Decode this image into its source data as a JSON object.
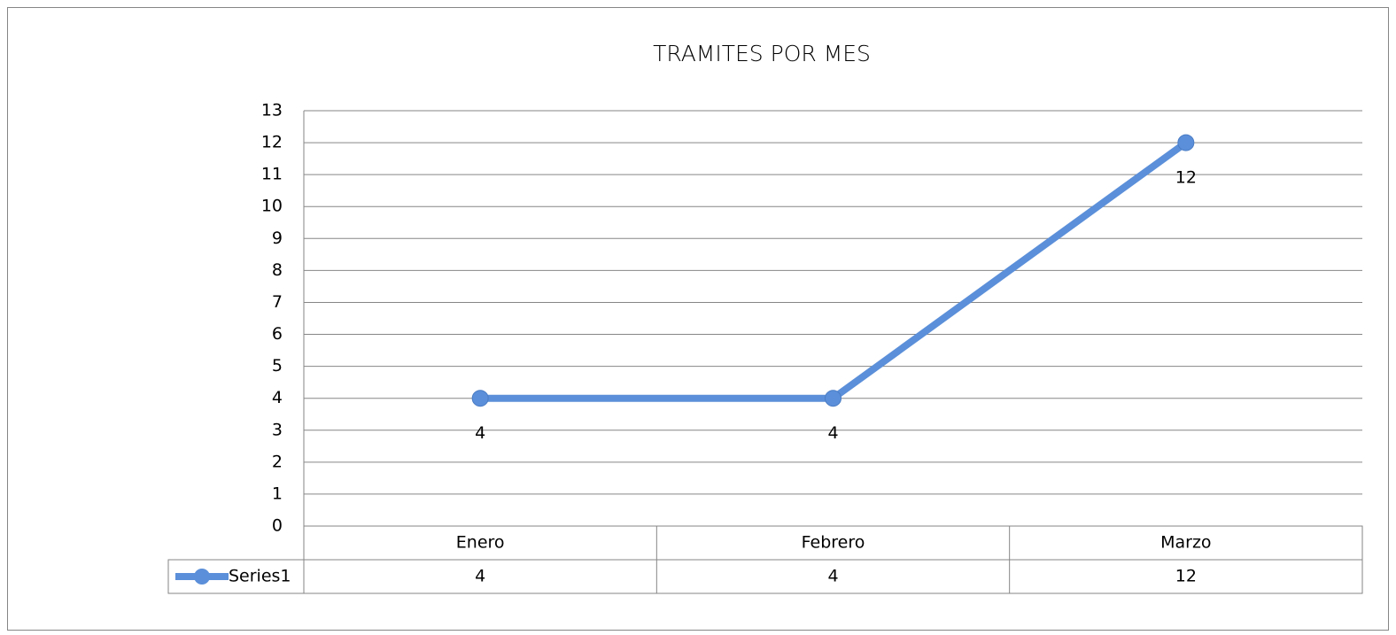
{
  "chart_data": {
    "type": "line",
    "title": "TRAMITES POR MES",
    "categories": [
      "Enero",
      "Febrero",
      "Marzo"
    ],
    "series": [
      {
        "name": "Series1",
        "color": "#5b8fd9",
        "values": [
          4,
          4,
          12
        ]
      }
    ],
    "ylim": [
      0,
      13
    ],
    "yticks": [
      0,
      1,
      2,
      3,
      4,
      5,
      6,
      7,
      8,
      9,
      10,
      11,
      12,
      13
    ],
    "grid": true,
    "data_table": true
  }
}
